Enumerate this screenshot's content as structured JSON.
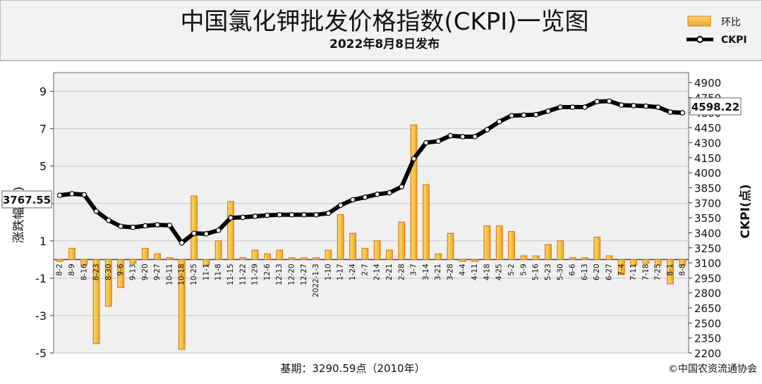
{
  "header": {
    "title": "中国氯化钾批发价格指数(CKPI)一览图",
    "subtitle": "2022年8月8日发布"
  },
  "legend": {
    "bar_label": "环比",
    "line_label": "CKPI"
  },
  "footer": {
    "base": "基期：3290.59点（2010年）",
    "credit": "©中国农资流通协会"
  },
  "chart_data": {
    "type": "bar",
    "categories": [
      "8-2",
      "8-9",
      "8-16",
      "8-23",
      "8-30",
      "9-6",
      "9-13",
      "9-20",
      "9-27",
      "10-11",
      "10-18",
      "10-25",
      "11-1",
      "11-8",
      "11-15",
      "11-22",
      "11-29",
      "12-6",
      "12-13",
      "12-20",
      "12-27",
      "2022-1-3",
      "1-10",
      "1-17",
      "1-24",
      "2-7",
      "2-14",
      "2-21",
      "2-28",
      "3-7",
      "3-14",
      "3-21",
      "3-28",
      "4-4",
      "4-11",
      "4-18",
      "4-25",
      "5-2",
      "5-9",
      "5-16",
      "5-23",
      "5-30",
      "6-6",
      "6-13",
      "6-20",
      "6-27",
      "7-4",
      "7-11",
      "7-18",
      "7-25",
      "8-1",
      "8-8"
    ],
    "series": [
      {
        "name": "环比",
        "axis": "left",
        "kind": "bar",
        "values": [
          -0.1,
          0.6,
          -0.3,
          -4.5,
          -2.5,
          -1.5,
          -0.2,
          0.6,
          0.3,
          0.1,
          -4.8,
          3.4,
          -0.3,
          1.0,
          3.1,
          0.1,
          0.5,
          0.3,
          0.5,
          0.1,
          0.1,
          0.1,
          0.5,
          2.4,
          1.4,
          0.6,
          1.0,
          0.5,
          2.0,
          7.2,
          4.0,
          0.3,
          1.4,
          -0.1,
          -0.1,
          1.8,
          1.8,
          1.5,
          0.2,
          0.2,
          0.8,
          1.0,
          0.1,
          0.1,
          1.2,
          0.2,
          -0.8,
          -0.3,
          -0.2,
          -0.3,
          -1.3,
          -0.3
        ]
      },
      {
        "name": "CKPI",
        "axis": "right",
        "kind": "line",
        "values": [
          3775,
          3790,
          3780,
          3615,
          3525,
          3465,
          3455,
          3470,
          3480,
          3475,
          3300,
          3395,
          3390,
          3425,
          3550,
          3555,
          3565,
          3575,
          3580,
          3580,
          3580,
          3580,
          3595,
          3675,
          3730,
          3755,
          3785,
          3800,
          3860,
          4140,
          4300,
          4315,
          4370,
          4360,
          4360,
          4430,
          4510,
          4570,
          4575,
          4580,
          4615,
          4655,
          4655,
          4655,
          4710,
          4715,
          4675,
          4670,
          4665,
          4655,
          4605,
          4598.22
        ]
      }
    ],
    "ylabel": "涨跌幅(%)",
    "y2label": "CKPI(点)",
    "ylim": [
      -5,
      10
    ],
    "y2lim": [
      2200,
      5000
    ],
    "yticks": [
      -5,
      -3,
      -1,
      1,
      3,
      5,
      7,
      9
    ],
    "y2ticks": [
      2200,
      2350,
      2500,
      2650,
      2800,
      2950,
      3100,
      3250,
      3400,
      3550,
      3700,
      3850,
      4000,
      4150,
      4300,
      4450,
      4600,
      4750,
      4900
    ],
    "annotations": {
      "left_value": "3767.55",
      "right_value": "4598.22"
    },
    "colors": {
      "bar_fill": "#f5c542",
      "bar_edge": "#e07b1c",
      "line": "#000000",
      "marker_fill": "#ffffff",
      "plot_bg": "#f0f0f0",
      "title_bg": "#f2f2f2"
    },
    "grid": true
  }
}
